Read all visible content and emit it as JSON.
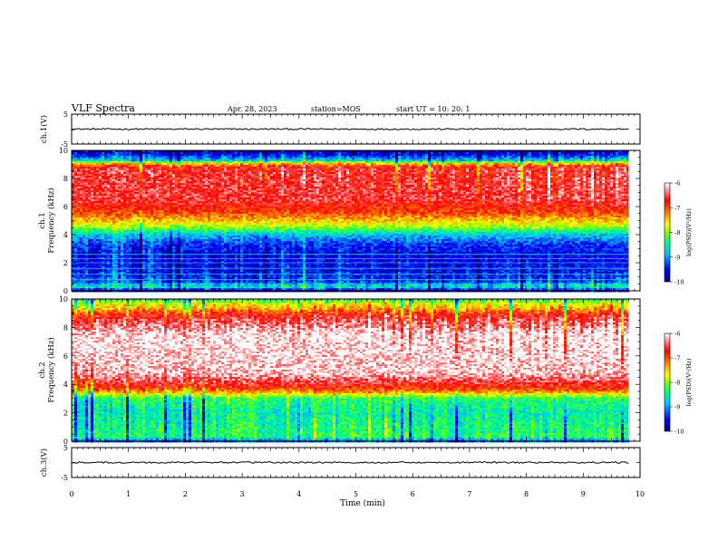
{
  "header": {
    "title": "VLF Spectra",
    "date": "Apr. 28, 2023",
    "station": "station=MOS",
    "start": "start UT =   10: 20: 1"
  },
  "colorscale": {
    "stops": [
      "#000080",
      "#0000ff",
      "#00bfff",
      "#00ff80",
      "#80ff00",
      "#ffff00",
      "#ff8000",
      "#ff0000",
      "#ffffff"
    ]
  },
  "chart_data": [
    {
      "type": "line",
      "ylabel": "ch.1(V)",
      "ylim": [
        -5,
        5
      ],
      "yticks": [
        5,
        -5
      ],
      "xlim": [
        0,
        10
      ],
      "x": [
        0,
        9.8
      ],
      "series": [
        {
          "values": [
            0,
            0
          ]
        }
      ]
    },
    {
      "type": "heatmap",
      "ylabel": "ch.1\nFrequency (kHz)",
      "xlim": [
        0,
        10
      ],
      "ylim": [
        0,
        10
      ],
      "yticks": [
        0,
        2,
        4,
        6,
        8,
        10
      ],
      "data_xmax": 9.8,
      "colorbar": {
        "label": "log(PSD)(V²/Hz)",
        "range": [
          -10,
          -6
        ],
        "ticks": [
          -6,
          -7,
          -8,
          -9,
          -10
        ]
      },
      "profile": [
        {
          "f": 0.0,
          "v": 0.05
        },
        {
          "f": 0.3,
          "v": 0.38
        },
        {
          "f": 0.6,
          "v": 0.18
        },
        {
          "f": 1.5,
          "v": 0.12
        },
        {
          "f": 2.5,
          "v": 0.1
        },
        {
          "f": 3.3,
          "v": 0.16
        },
        {
          "f": 4.0,
          "v": 0.3
        },
        {
          "f": 4.5,
          "v": 0.5
        },
        {
          "f": 5.0,
          "v": 0.64
        },
        {
          "f": 5.6,
          "v": 0.76
        },
        {
          "f": 6.5,
          "v": 0.87
        },
        {
          "f": 8.7,
          "v": 0.86
        },
        {
          "f": 9.0,
          "v": 0.7
        },
        {
          "f": 9.3,
          "v": 0.3
        },
        {
          "f": 9.7,
          "v": 0.12
        },
        {
          "f": 10.0,
          "v": 0.06
        }
      ],
      "lines_khz": [
        0.5,
        0.8,
        1.2,
        1.6,
        2.0,
        2.3,
        2.6
      ]
    },
    {
      "type": "heatmap",
      "ylabel": "ch.2\nFrequency (kHz)",
      "xlim": [
        0,
        10
      ],
      "ylim": [
        0,
        10
      ],
      "yticks": [
        0,
        2,
        4,
        6,
        8,
        10
      ],
      "data_xmax": 9.8,
      "colorbar": {
        "label": "log(PSD)(V²/Hz)",
        "range": [
          -10,
          -6
        ],
        "ticks": [
          -6,
          -7,
          -8,
          -9,
          -10
        ]
      },
      "profile": [
        {
          "f": 0.0,
          "v": 0.2
        },
        {
          "f": 0.3,
          "v": 0.42
        },
        {
          "f": 1.0,
          "v": 0.4
        },
        {
          "f": 2.0,
          "v": 0.36
        },
        {
          "f": 3.0,
          "v": 0.42
        },
        {
          "f": 3.5,
          "v": 0.7
        },
        {
          "f": 4.0,
          "v": 0.85
        },
        {
          "f": 4.8,
          "v": 0.97
        },
        {
          "f": 7.5,
          "v": 0.99
        },
        {
          "f": 8.3,
          "v": 0.9
        },
        {
          "f": 8.8,
          "v": 0.84
        },
        {
          "f": 9.3,
          "v": 0.66
        },
        {
          "f": 9.7,
          "v": 0.55
        },
        {
          "f": 10.0,
          "v": 0.4
        }
      ],
      "lines_khz": []
    },
    {
      "type": "line",
      "ylabel": "ch.3(V)",
      "ylim": [
        -5,
        5
      ],
      "yticks": [
        5,
        -5
      ],
      "xlim": [
        0,
        10
      ],
      "xticks": [
        0,
        1,
        2,
        3,
        4,
        5,
        6,
        7,
        8,
        9,
        10
      ],
      "xlabel": "Time (min)",
      "x": [
        0,
        9.8
      ],
      "series": [
        {
          "values": [
            0,
            0
          ]
        }
      ]
    }
  ]
}
